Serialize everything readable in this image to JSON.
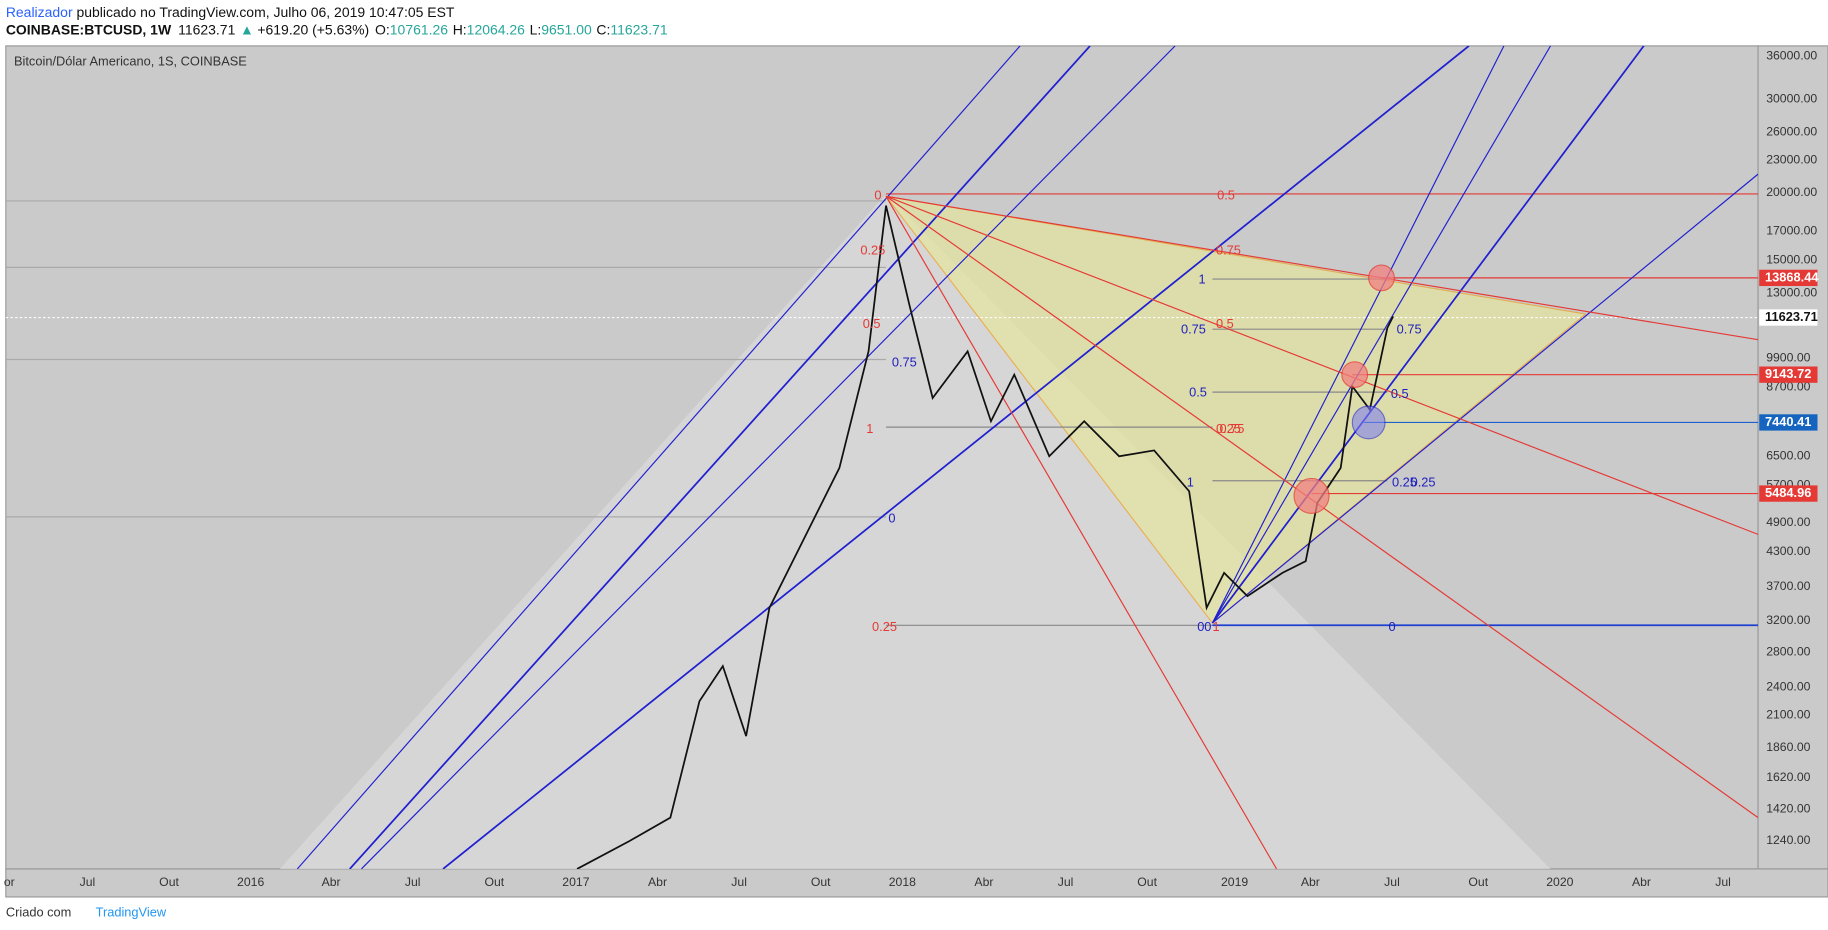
{
  "header": {
    "author": "Realizador",
    "published": " publicado no TradingView.com, Julho 06, 2019 10:47:05 EST",
    "symbol": "COINBASE:BTCUSD, 1W",
    "last": "11623.71",
    "change": "+619.20 (+5.63%)",
    "open_label": "O:",
    "open": "10761.26",
    "high_label": "H:",
    "high": "12064.26",
    "low_label": "L:",
    "low": "9651.00",
    "close_label": "C:",
    "close": "11623.71"
  },
  "chart": {
    "legend": "Bitcoin/Dólar Americano, 1S, COINBASE",
    "price_axis": [
      "36000.00",
      "30000.00",
      "26000.00",
      "23000.00",
      "20000.00",
      "17000.00",
      "15000.00",
      "13000.00",
      "9900.00",
      "8700.00",
      "6500.00",
      "5700.00",
      "4900.00",
      "4300.00",
      "3700.00",
      "3200.00",
      "2800.00",
      "2400.00",
      "2100.00",
      "1860.00",
      "1620.00",
      "1420.00",
      "1240.00"
    ],
    "time_axis": [
      "or",
      "Jul",
      "Out",
      "2016",
      "Abr",
      "Jul",
      "Out",
      "2017",
      "Abr",
      "Jul",
      "Out",
      "2018",
      "Abr",
      "Jul",
      "Out",
      "2019",
      "Abr",
      "Jul",
      "Out",
      "2020",
      "Abr",
      "Jul"
    ],
    "price_tags": [
      "13868.44",
      "9143.72",
      "7440.41",
      "5484.96",
      "11623.71"
    ],
    "fib_labels": [
      "0",
      "0.25",
      "0.5",
      "0.75",
      "1",
      "0",
      "0.25",
      "0.5",
      "0.75",
      "0.5",
      "0.25",
      "1",
      "0",
      "0.25",
      "0.5",
      "0.75",
      "1",
      "0",
      "0.75",
      "0.5",
      "0.25",
      "0",
      "1",
      "0.75"
    ]
  },
  "footer": {
    "text": "Criado com",
    "brand": "TradingView"
  }
}
